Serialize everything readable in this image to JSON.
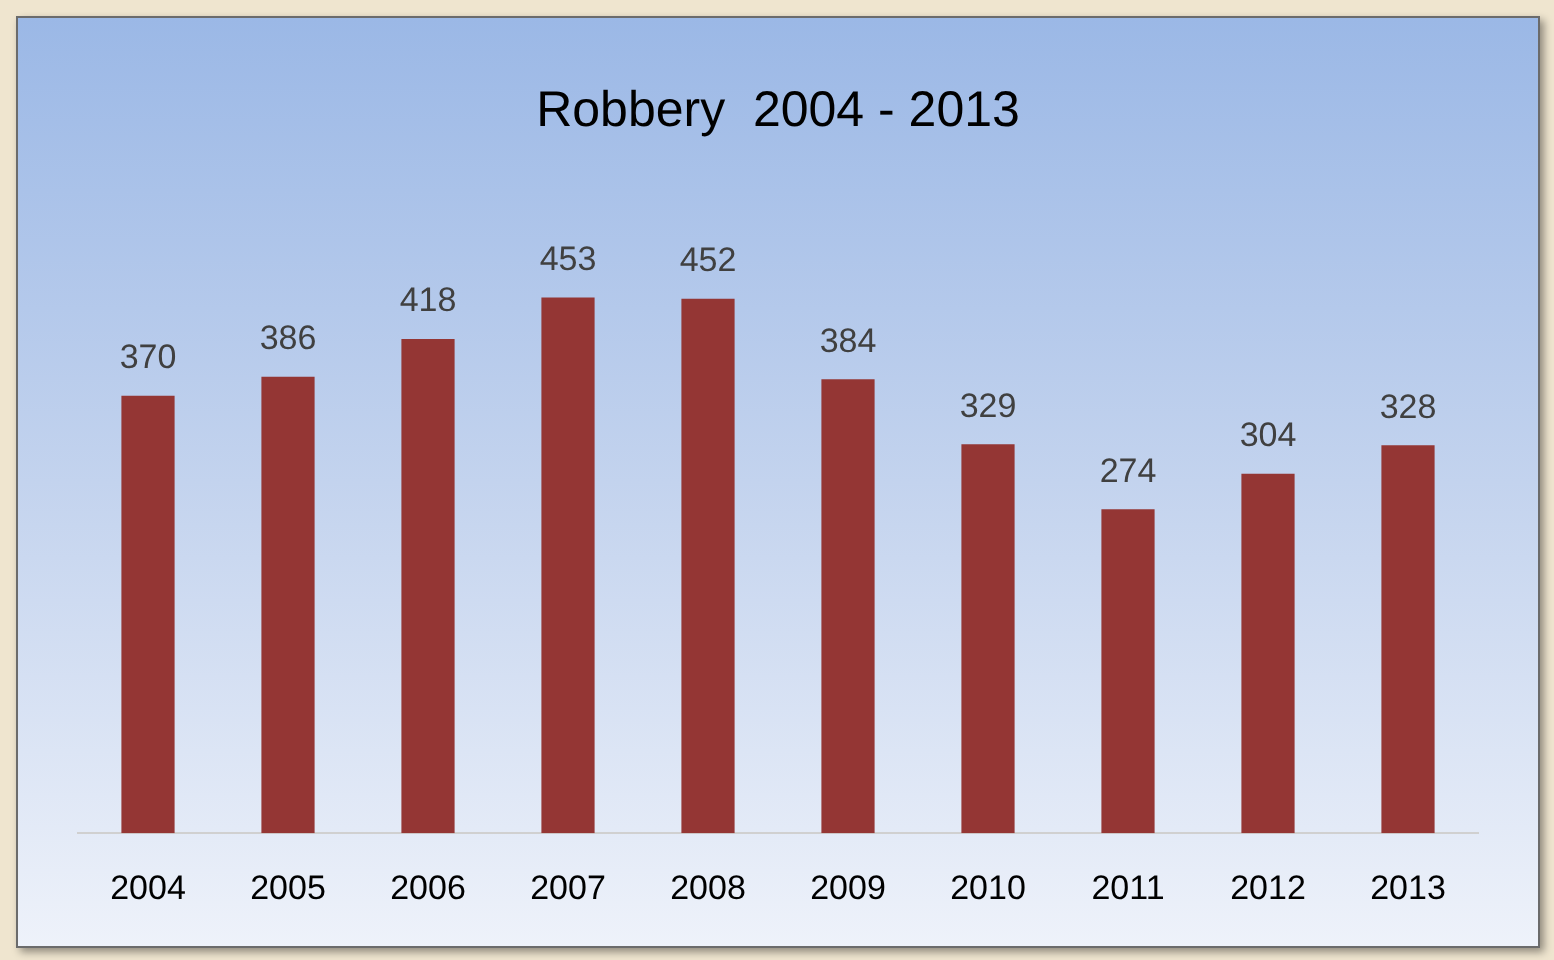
{
  "chart_data": {
    "type": "bar",
    "title": "Robbery  2004 - 2013",
    "categories": [
      "2004",
      "2005",
      "2006",
      "2007",
      "2008",
      "2009",
      "2010",
      "2011",
      "2012",
      "2013"
    ],
    "values": [
      370,
      386,
      418,
      453,
      452,
      384,
      329,
      274,
      304,
      328
    ],
    "color": "#943634",
    "data_labels": true
  }
}
